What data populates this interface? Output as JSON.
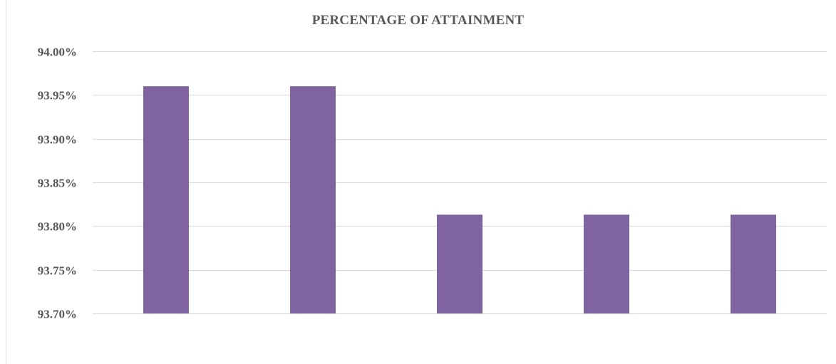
{
  "chart_data": {
    "type": "bar",
    "title": "PERCENTAGE OF ATTAINMENT",
    "xlabel": "",
    "ylabel": "",
    "categories": [
      "",
      "",
      "",
      "",
      ""
    ],
    "values": [
      93.96,
      93.96,
      93.813,
      93.813,
      93.813
    ],
    "ylim": [
      93.7,
      94.0
    ],
    "yticks": [
      93.7,
      93.75,
      93.8,
      93.85,
      93.9,
      93.95,
      94.0
    ],
    "ytick_labels": [
      "93.70%",
      "93.75%",
      "93.80%",
      "93.85%",
      "93.90%",
      "93.95%",
      "94.00%"
    ],
    "grid": true,
    "legend": "none",
    "bar_color": "#8064a2",
    "grid_color": "#d9d9d9",
    "text_color": "#595959"
  }
}
